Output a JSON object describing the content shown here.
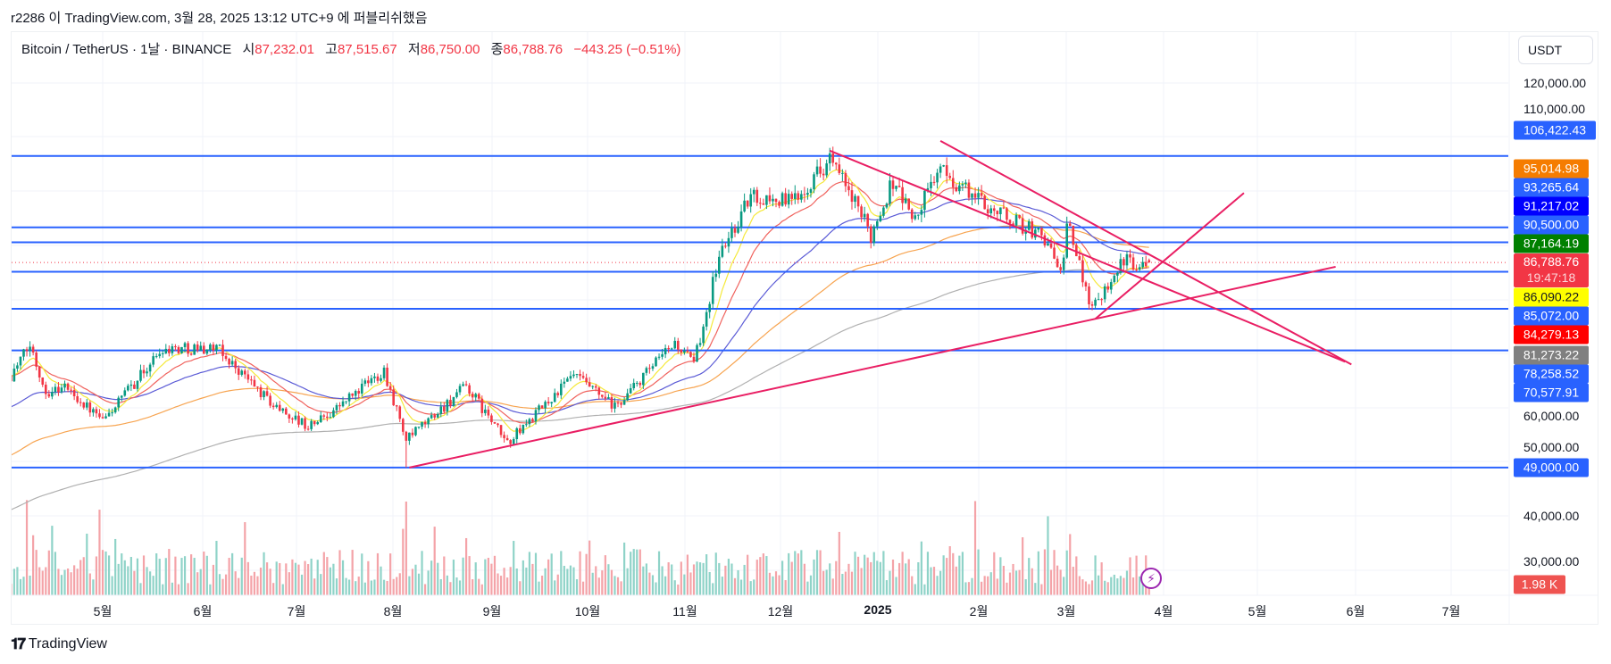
{
  "published": "r2286 이 TradingView.com, 3월 28, 2025 13:12 UTC+9 에 퍼블리쉬했음",
  "legend": {
    "symbol": "Bitcoin / TetherUS · 1날 · BINANCE",
    "open_label": "시",
    "open": "87,232.01",
    "high_label": "고",
    "high": "87,515.67",
    "low_label": "저",
    "low": "86,750.00",
    "close_label": "종",
    "close": "86,788.76",
    "change": "−443.25 (−0.51%)"
  },
  "currency_button": "USDT",
  "price_axis": {
    "ticks": [
      "120,000.00",
      "110,000.00",
      "60,000.00",
      "50,000.00",
      "40,000.00",
      "30,000.00"
    ],
    "labels": [
      {
        "text": "106,422.43",
        "color": "#2962ff"
      },
      {
        "text": "95,014.98",
        "color": "#f57c00"
      },
      {
        "text": "93,265.64",
        "color": "#2962ff"
      },
      {
        "text": "91,217.02",
        "color": "#0000ff"
      },
      {
        "text": "90,500.00",
        "color": "#2962ff"
      },
      {
        "text": "87,164.19",
        "color": "#008000"
      },
      {
        "text": "86,788.76",
        "color": "#f23645",
        "countdown": "19:47:18"
      },
      {
        "text": "86,090.22",
        "color": "#ffff00"
      },
      {
        "text": "85,072.00",
        "color": "#2962ff"
      },
      {
        "text": "84,279.13",
        "color": "#ff0000"
      },
      {
        "text": "81,273.22",
        "color": "#808080"
      },
      {
        "text": "78,258.52",
        "color": "#2962ff"
      },
      {
        "text": "70,577.91",
        "color": "#2962ff"
      },
      {
        "text": "49,000.00",
        "color": "#2962ff"
      },
      {
        "text": "1.98 K",
        "color": "#ef5350"
      }
    ]
  },
  "time_axis": [
    "5월",
    "6월",
    "7월",
    "8월",
    "9월",
    "10월",
    "11월",
    "12월",
    "2025",
    "2월",
    "3월",
    "4월",
    "5월",
    "6월",
    "7월"
  ],
  "horizontal_levels": [
    106422.43,
    93265.64,
    90500,
    85072,
    78258.52,
    70577.91,
    49000
  ],
  "current_price": 86788.76,
  "last_candle": {
    "open": 87232.01,
    "high": 87515.67,
    "low": 86750.0,
    "close": 86788.76
  },
  "price_path": [
    [
      "2024-04-02",
      66000
    ],
    [
      "2024-04-08",
      71500
    ],
    [
      "2024-04-13",
      63000
    ],
    [
      "2024-04-19",
      64000
    ],
    [
      "2024-05-01",
      57500
    ],
    [
      "2024-05-20",
      71000
    ],
    [
      "2024-06-06",
      71000
    ],
    [
      "2024-06-24",
      60500
    ],
    [
      "2024-07-05",
      56500
    ],
    [
      "2024-07-14",
      60000
    ],
    [
      "2024-07-29",
      67000
    ],
    [
      "2024-08-05",
      54000
    ],
    [
      "2024-08-24",
      64000
    ],
    [
      "2024-09-06",
      53500
    ],
    [
      "2024-09-27",
      66000
    ],
    [
      "2024-10-10",
      60000
    ],
    [
      "2024-10-29",
      72000
    ],
    [
      "2024-11-04",
      68000
    ],
    [
      "2024-11-12",
      88000
    ],
    [
      "2024-11-22",
      99000
    ],
    [
      "2024-12-05",
      98000
    ],
    [
      "2024-12-17",
      106000
    ],
    [
      "2024-12-30",
      92000
    ],
    [
      "2025-01-06",
      102000
    ],
    [
      "2025-01-13",
      94500
    ],
    [
      "2025-01-20",
      104000
    ],
    [
      "2025-02-03",
      98000
    ],
    [
      "2025-02-24",
      91000
    ],
    [
      "2025-02-28",
      84000
    ],
    [
      "2025-03-02",
      94000
    ],
    [
      "2025-03-10",
      78500
    ],
    [
      "2025-03-19",
      86800
    ],
    [
      "2025-03-28",
      86788.76
    ]
  ],
  "trend_lines": [
    [
      [
        "2024-08-06",
        49000
      ],
      [
        "2025-05-26",
        86000
      ]
    ],
    [
      [
        "2025-01-21",
        109200
      ],
      [
        "2025-05-31",
        68000
      ]
    ],
    [
      [
        "2024-12-17",
        107400
      ],
      [
        "2025-05-29",
        68500
      ]
    ],
    [
      [
        "2025-03-11",
        76400
      ],
      [
        "2025-04-27",
        99600
      ]
    ]
  ],
  "colors": {
    "up": "#089981",
    "down": "#f23645",
    "level": "#2962ff",
    "trend": "#e91e63",
    "ma_fast": "#f5e93a",
    "ma_20": "#f0625d",
    "ma_50": "#5b5bd6",
    "ma_100": "#f7a450",
    "ma_200": "#b0b0b0"
  },
  "branding": "TradingView",
  "icons": {
    "alert": "lightning-icon"
  }
}
